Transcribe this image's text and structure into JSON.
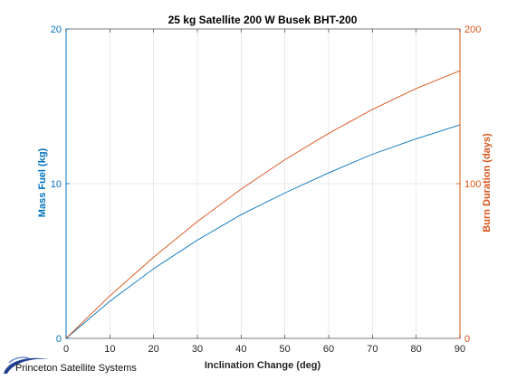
{
  "chart_data": {
    "type": "line",
    "title": "25 kg Satellite 200 W Busek BHT-200",
    "xlabel": "Inclination Change (deg)",
    "ylabel_left": "Mass Fuel (kg)",
    "ylabel_right": "Burn Duration (days)",
    "xlim": [
      0,
      90
    ],
    "ylim_left": [
      0,
      20
    ],
    "ylim_right": [
      0,
      200
    ],
    "x_ticks": [
      "0",
      "10",
      "20",
      "30",
      "40",
      "50",
      "60",
      "70",
      "80",
      "90"
    ],
    "y_ticks_left": [
      "0",
      "10",
      "20"
    ],
    "y_ticks_right": [
      "0",
      "100",
      "200"
    ],
    "grid": true,
    "series": [
      {
        "name": "Mass Fuel (kg)",
        "axis": "left",
        "color": "#0072BD",
        "x": [
          0,
          10,
          20,
          30,
          40,
          50,
          60,
          70,
          80,
          90
        ],
        "values": [
          0,
          2.4,
          4.5,
          6.35,
          8.0,
          9.4,
          10.7,
          11.9,
          12.9,
          13.8
        ]
      },
      {
        "name": "Burn Duration (days)",
        "axis": "right",
        "color": "#D95319",
        "x": [
          0,
          10,
          20,
          30,
          40,
          50,
          60,
          70,
          80,
          90
        ],
        "values": [
          0,
          27.5,
          52.5,
          75.5,
          96.5,
          115.5,
          132.5,
          148.0,
          161.5,
          173.0
        ]
      }
    ]
  },
  "footer": {
    "logo_text": "Princeton Satellite Systems"
  }
}
